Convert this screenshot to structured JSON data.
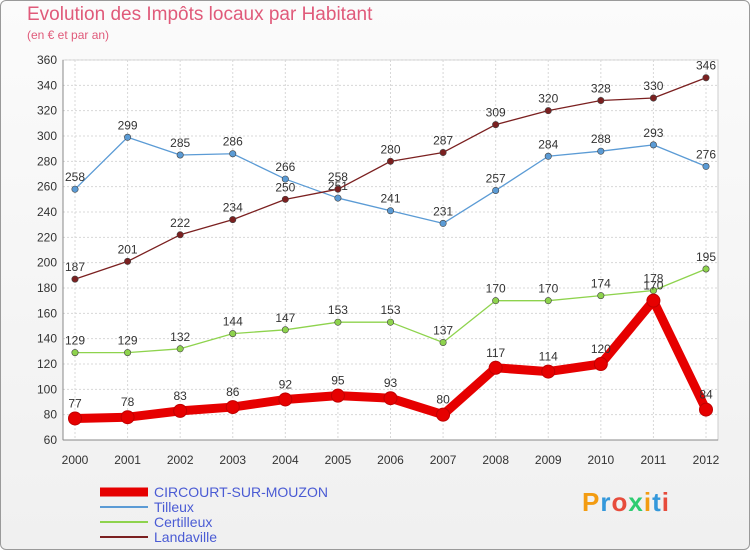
{
  "title": "Evolution des Impôts locaux par Habitant",
  "subtitle": "(en € et par an)",
  "logo": {
    "text": "Proxiti",
    "colors": [
      "#f39c12",
      "#3498db",
      "#e74c3c",
      "#2ecc71"
    ]
  },
  "chart_data": {
    "type": "line",
    "x": [
      "2000",
      "2001",
      "2002",
      "2003",
      "2004",
      "2005",
      "2006",
      "2007",
      "2008",
      "2009",
      "2010",
      "2011",
      "2012"
    ],
    "ylim": [
      60,
      360
    ],
    "yticks": [
      60,
      80,
      100,
      120,
      140,
      160,
      180,
      200,
      220,
      240,
      260,
      280,
      300,
      320,
      340,
      360
    ],
    "grid": true,
    "legend_position": "bottom-left",
    "series": [
      {
        "name": "CIRCOURT-SUR-MOUZON",
        "color": "#e60000",
        "values": [
          77,
          78,
          83,
          86,
          92,
          95,
          93,
          80,
          117,
          114,
          120,
          170,
          84
        ]
      },
      {
        "name": "Tilleux",
        "color": "#5b9bd5",
        "values": [
          258,
          299,
          285,
          286,
          266,
          251,
          241,
          231,
          257,
          284,
          288,
          293,
          276
        ]
      },
      {
        "name": "Certilleux",
        "color": "#8ed34d",
        "values": [
          129,
          129,
          132,
          144,
          147,
          153,
          153,
          137,
          170,
          170,
          174,
          178,
          195
        ]
      },
      {
        "name": "Landaville",
        "color": "#7b2020",
        "values": [
          187,
          201,
          222,
          234,
          250,
          258,
          280,
          287,
          309,
          320,
          328,
          330,
          346
        ]
      }
    ]
  }
}
